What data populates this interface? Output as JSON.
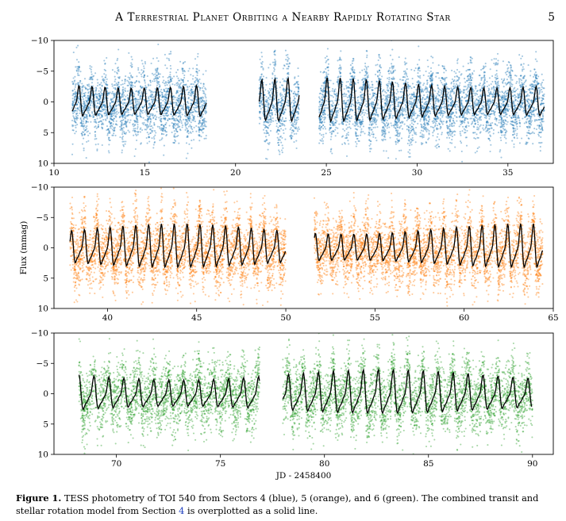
{
  "header": {
    "running_title": "A Terrestrial Planet Orbiting a Nearby Rapidly Rotating Star",
    "page_number": "5"
  },
  "chart_data": [
    {
      "type": "scatter",
      "panel": "Sector 4",
      "point_color": "#1f77b4",
      "model_color": "#000000",
      "xlim": [
        10,
        37.5
      ],
      "ylim": [
        10,
        -10
      ],
      "ylabel": "",
      "xticks": [
        "10",
        "15",
        "20",
        "25",
        "30",
        "35"
      ],
      "xtick_values": [
        10,
        15,
        20,
        25,
        30,
        35
      ],
      "yticks": [
        "−10",
        "−5",
        "0",
        "5",
        "10"
      ],
      "ytick_values": [
        -10,
        -5,
        0,
        5,
        10
      ],
      "segments": [
        [
          11.0,
          18.4
        ],
        [
          21.3,
          23.5
        ],
        [
          24.6,
          37.0
        ]
      ],
      "scatter_sigma_mmag": 2.6
    },
    {
      "type": "scatter",
      "panel": "Sector 5",
      "point_color": "#ff7f0e",
      "model_color": "#000000",
      "xlim": [
        37,
        65
      ],
      "ylim": [
        10,
        -10
      ],
      "ylabel": "Flux (mmag)",
      "xticks": [
        "40",
        "45",
        "50",
        "55",
        "60",
        "65"
      ],
      "xtick_values": [
        40,
        45,
        50,
        55,
        60,
        65
      ],
      "yticks": [
        "−10",
        "−5",
        "0",
        "5",
        "10"
      ],
      "ytick_values": [
        -10,
        -5,
        0,
        5,
        10
      ],
      "segments": [
        [
          37.9,
          50.0
        ],
        [
          51.6,
          64.4
        ]
      ],
      "scatter_sigma_mmag": 2.6
    },
    {
      "type": "scatter",
      "panel": "Sector 6",
      "point_color": "#2ca02c",
      "model_color": "#000000",
      "xlim": [
        67,
        91
      ],
      "ylim": [
        10,
        -10
      ],
      "ylabel": "",
      "xlabel": "JD - 2458400",
      "xticks": [
        "70",
        "75",
        "80",
        "85",
        "90"
      ],
      "xtick_values": [
        70,
        75,
        80,
        85,
        90
      ],
      "yticks": [
        "−10",
        "−5",
        "0",
        "5",
        "10"
      ],
      "ytick_values": [
        -10,
        -5,
        0,
        5,
        10
      ],
      "segments": [
        [
          68.2,
          76.9
        ],
        [
          78.0,
          90.0
        ]
      ],
      "scatter_sigma_mmag": 2.6
    }
  ],
  "caption": {
    "label": "Figure 1.",
    "text_before_ref": "TESS photometry of TOI 540 from Sectors 4 (blue), 5 (orange), and 6 (green). The combined transit and stellar rotation model from Section ",
    "ref": "4",
    "text_after_ref": " is overplotted as a solid line."
  }
}
